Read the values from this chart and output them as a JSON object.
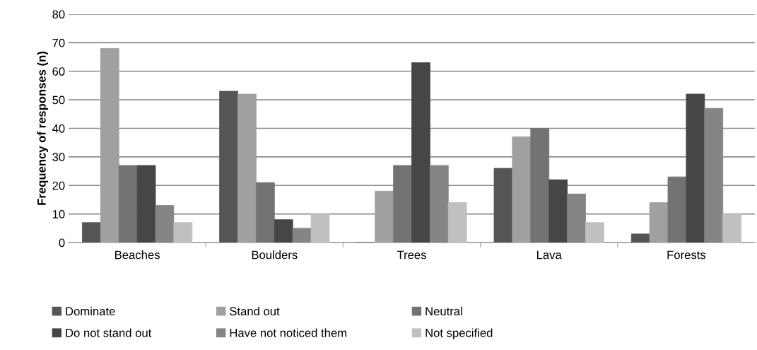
{
  "chart_data": {
    "type": "bar",
    "ylabel": "Frequency of responses (n)",
    "categories": [
      "Beaches",
      "Boulders",
      "Trees",
      "Lava",
      "Forests"
    ],
    "series": [
      {
        "name": "Dominate",
        "color": "#555555",
        "values": [
          7,
          53,
          0,
          26,
          3
        ]
      },
      {
        "name": "Stand out",
        "color": "#a0a0a0",
        "values": [
          68,
          52,
          18,
          37,
          14
        ]
      },
      {
        "name": "Neutral",
        "color": "#737373",
        "values": [
          27,
          21,
          27,
          40,
          23
        ]
      },
      {
        "name": "Do not stand out",
        "color": "#464646",
        "values": [
          27,
          8,
          63,
          22,
          52
        ]
      },
      {
        "name": "Have not noticed them",
        "color": "#858585",
        "values": [
          13,
          5,
          27,
          17,
          47
        ]
      },
      {
        "name": "Not specified",
        "color": "#c0c0c0",
        "values": [
          7,
          10,
          14,
          7,
          10
        ]
      }
    ],
    "ylim": [
      0,
      80
    ],
    "yticks": [
      0,
      10,
      20,
      30,
      40,
      50,
      60,
      70,
      80
    ],
    "grid": "y",
    "legend": "bottom"
  }
}
